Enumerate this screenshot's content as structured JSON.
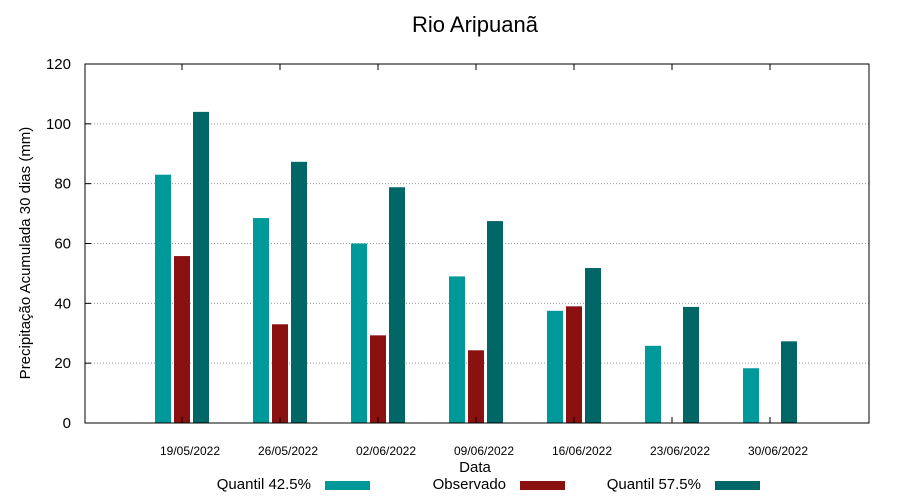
{
  "chart_data": {
    "type": "bar",
    "title": "Rio Aripuanã",
    "xlabel": "Data",
    "ylabel": "Precipitação Acumulada 30 dias (mm)",
    "ylim": [
      0,
      120
    ],
    "yticks": [
      0,
      20,
      40,
      60,
      80,
      100,
      120
    ],
    "grid": true,
    "legend_position": "bottom",
    "categories": [
      "19/05/2022",
      "26/05/2022",
      "02/06/2022",
      "09/06/2022",
      "16/06/2022",
      "23/06/2022",
      "30/06/2022"
    ],
    "series": [
      {
        "name": "Quantil 42.5%",
        "color": "#009999",
        "values": [
          83,
          68.5,
          60,
          49,
          37.5,
          25.8,
          18.3
        ]
      },
      {
        "name": "Observado",
        "color": "#8b1010",
        "values": [
          55.8,
          33,
          29.3,
          24.3,
          39,
          null,
          null
        ]
      },
      {
        "name": "Quantil 57.5%",
        "color": "#006666",
        "values": [
          104,
          87.3,
          78.8,
          67.5,
          51.8,
          38.8,
          27.3
        ]
      }
    ]
  }
}
